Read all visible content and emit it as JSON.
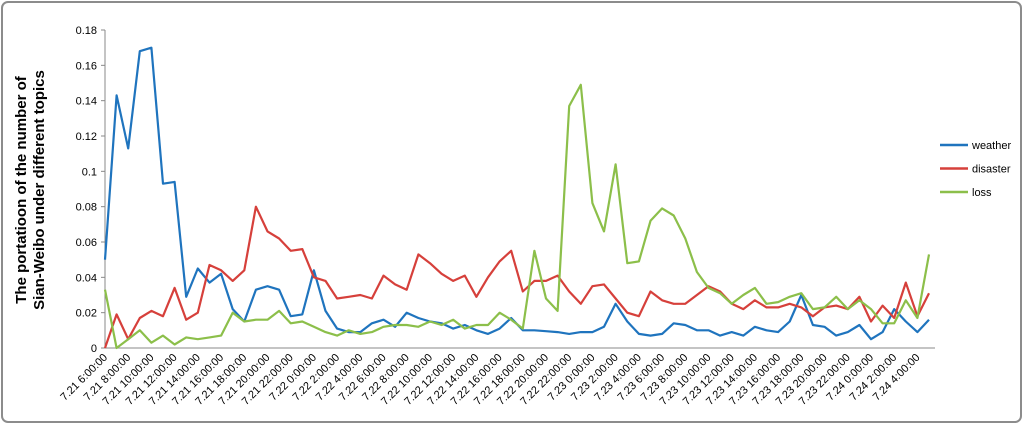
{
  "chart_data": {
    "type": "line",
    "y_label_lines": [
      "The portatioon of the number of",
      "Sian-Weibo under different topics"
    ],
    "categories": [
      "7.21 6:00:00",
      null,
      "7.21 8:00:00",
      null,
      "7.21 10:00:00",
      null,
      "7.21 12:00:00",
      null,
      "7.21 14:00:00",
      null,
      "7.21 16:00:00",
      null,
      "7.21 18:00:00",
      null,
      "7.21 20:00:00",
      null,
      "7.21 22:00:00",
      null,
      "7.22 0:00:00",
      null,
      "7.22 2:00:00",
      null,
      "7.22 4:00:00",
      null,
      "7.22 6:00:00",
      null,
      "7.22 8:00:00",
      null,
      "7.22 10:00:00",
      null,
      "7.22 12:00:00",
      null,
      "7.22 14:00:00",
      null,
      "7.22 16:00:00",
      null,
      "7.22 18:00:00",
      null,
      "7.22 20:00:00",
      null,
      "7.22 22:00:00",
      null,
      "7.23 0:00:00",
      null,
      "7.23 2:00:00",
      null,
      "7.23 4:00:00",
      null,
      "7.23 6:00:00",
      null,
      "7.23 8:00:00",
      null,
      "7.23 10:00:00",
      null,
      "7.23 12:00:00",
      null,
      "7.23 14:00:00",
      null,
      "7.23 16:00:00",
      null,
      "7.23 18:00:00",
      null,
      "7.23 20:00:00",
      null,
      "7.23 22:00:00",
      null,
      "7.24 0:00:00",
      null,
      "7.24 2:00:00",
      null,
      "7.24 4:00:00",
      null
    ],
    "series": [
      {
        "name": "weather",
        "color": "#1f74be",
        "values": [
          0.05,
          0.143,
          0.113,
          0.168,
          0.17,
          0.093,
          0.094,
          0.029,
          0.045,
          0.037,
          0.042,
          0.022,
          0.015,
          0.033,
          0.035,
          0.033,
          0.018,
          0.019,
          0.044,
          0.021,
          0.011,
          0.009,
          0.009,
          0.014,
          0.016,
          0.012,
          0.02,
          0.017,
          0.015,
          0.014,
          0.011,
          0.013,
          0.01,
          0.008,
          0.011,
          0.017,
          0.01,
          0.01,
          0.0095,
          0.009,
          0.008,
          0.009,
          0.009,
          0.012,
          0.025,
          0.015,
          0.008,
          0.007,
          0.008,
          0.014,
          0.013,
          0.01,
          0.01,
          0.007,
          0.009,
          0.007,
          0.012,
          0.01,
          0.009,
          0.015,
          0.03,
          0.013,
          0.012,
          0.007,
          0.009,
          0.013,
          0.005,
          0.009,
          0.022,
          0.015,
          0.009,
          0.016
        ]
      },
      {
        "name": "disaster",
        "color": "#d6403b",
        "values": [
          0,
          0.019,
          0.005,
          0.017,
          0.021,
          0.018,
          0.034,
          0.016,
          0.02,
          0.047,
          0.044,
          0.038,
          0.044,
          0.08,
          0.066,
          0.062,
          0.055,
          0.056,
          0.04,
          0.038,
          0.028,
          0.029,
          0.03,
          0.028,
          0.041,
          0.036,
          0.033,
          0.053,
          0.048,
          0.042,
          0.038,
          0.041,
          0.029,
          0.04,
          0.049,
          0.055,
          0.032,
          0.038,
          0.038,
          0.041,
          0.032,
          0.025,
          0.035,
          0.036,
          0.028,
          0.02,
          0.018,
          0.032,
          0.027,
          0.025,
          0.025,
          0.03,
          0.035,
          0.032,
          0.025,
          0.022,
          0.027,
          0.023,
          0.023,
          0.025,
          0.023,
          0.018,
          0.023,
          0.024,
          0.022,
          0.029,
          0.015,
          0.024,
          0.017,
          0.037,
          0.018,
          0.031
        ]
      },
      {
        "name": "loss",
        "color": "#8cbf4a",
        "values": [
          0.033,
          0,
          0.005,
          0.01,
          0.003,
          0.007,
          0.002,
          0.006,
          0.005,
          0.006,
          0.007,
          0.02,
          0.015,
          0.016,
          0.016,
          0.021,
          0.014,
          0.015,
          0.012,
          0.009,
          0.007,
          0.01,
          0.008,
          0.009,
          0.012,
          0.013,
          0.013,
          0.012,
          0.015,
          0.013,
          0.016,
          0.011,
          0.013,
          0.013,
          0.02,
          0.016,
          0.011,
          0.055,
          0.028,
          0.021,
          0.137,
          0.149,
          0.082,
          0.066,
          0.104,
          0.048,
          0.049,
          0.072,
          0.079,
          0.075,
          0.062,
          0.043,
          0.034,
          0.031,
          0.025,
          0.03,
          0.034,
          0.025,
          0.026,
          0.029,
          0.031,
          0.022,
          0.023,
          0.029,
          0.022,
          0.027,
          0.022,
          0.014,
          0.014,
          0.027,
          0.017,
          0.053
        ]
      }
    ],
    "ylim": [
      0,
      0.18
    ],
    "yticks": [
      0,
      0.02,
      0.04,
      0.06,
      0.08,
      0.1,
      0.12,
      0.14,
      0.16,
      0.18
    ],
    "grid": false,
    "legend": "right"
  }
}
